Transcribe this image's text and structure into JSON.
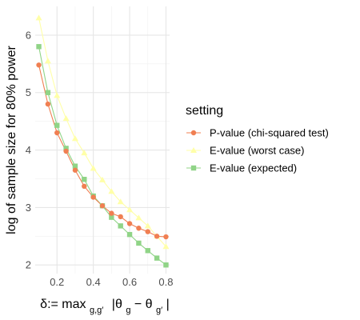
{
  "chart_data": {
    "type": "line",
    "xlabel": {
      "prefix": "δ:=  max",
      "sub": "g,g′",
      "abs": "|θ",
      "sub1": "g",
      "minus": " − θ",
      "sub2": "g′",
      "close": "|"
    },
    "ylabel": "log of sample size for 80% power",
    "xlim": [
      0.08,
      0.82
    ],
    "ylim": [
      1.85,
      6.5
    ],
    "x_ticks": [
      0.2,
      0.4,
      0.6,
      0.8
    ],
    "x_tick_labels": [
      "0.2",
      "0.4",
      "0.6",
      "0.8"
    ],
    "y_ticks": [
      2,
      3,
      4,
      5,
      6
    ],
    "y_tick_labels": [
      "2",
      "3",
      "4",
      "5",
      "6"
    ],
    "grid": true,
    "legend_position": "right",
    "legend_title": "setting",
    "x": [
      0.1,
      0.15,
      0.2,
      0.25,
      0.3,
      0.35,
      0.4,
      0.45,
      0.5,
      0.55,
      0.6,
      0.65,
      0.7,
      0.75,
      0.8
    ],
    "series": [
      {
        "name": "P-value (chi-squared test)",
        "color": "#F07F52",
        "marker": "circle",
        "values": [
          5.48,
          4.8,
          4.3,
          3.98,
          3.65,
          3.37,
          3.18,
          3.03,
          2.9,
          2.84,
          2.72,
          2.64,
          2.58,
          2.5,
          2.49
        ]
      },
      {
        "name": "E-value (worst case)",
        "color": "#FFFFA8",
        "marker": "triangle",
        "values": [
          6.3,
          5.55,
          4.95,
          4.55,
          4.2,
          3.95,
          3.68,
          3.48,
          3.28,
          3.1,
          2.96,
          2.82,
          2.68,
          2.5,
          2.32
        ]
      },
      {
        "name": "E-value (expected)",
        "color": "#90D487",
        "marker": "square",
        "values": [
          5.8,
          5.0,
          4.43,
          4.03,
          3.72,
          3.49,
          3.2,
          3.03,
          2.83,
          2.68,
          2.53,
          2.38,
          2.25,
          2.12,
          2.0
        ]
      }
    ]
  }
}
